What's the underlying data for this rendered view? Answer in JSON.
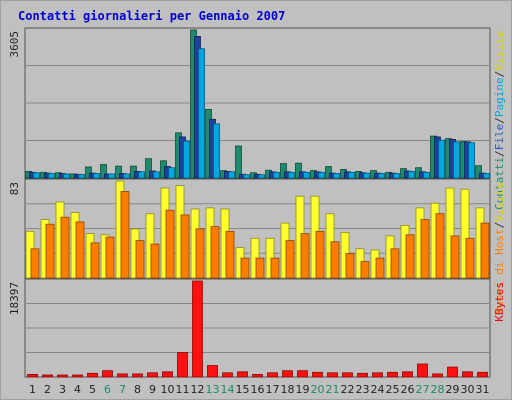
{
  "chart_data": [
    {
      "type": "bar",
      "title": "Contatti giornalieri per Gennaio 2007",
      "ylim": [
        0,
        3605
      ],
      "ytick_top": "3605",
      "categories": [
        "1",
        "2",
        "3",
        "4",
        "5",
        "6",
        "7",
        "8",
        "9",
        "10",
        "11",
        "12",
        "13",
        "14",
        "15",
        "16",
        "17",
        "18",
        "19",
        "20",
        "21",
        "22",
        "23",
        "24",
        "25",
        "26",
        "27",
        "28",
        "29",
        "30",
        "31"
      ],
      "weekend_days": [
        "6",
        "7",
        "13",
        "14",
        "20",
        "21",
        "27",
        "28"
      ],
      "grid": true,
      "legend_parts": [
        {
          "text": "Contatti",
          "color": "#1e8a6e"
        },
        {
          "text": "/",
          "color": "#333333"
        },
        {
          "text": "File",
          "color": "#2f56c8"
        },
        {
          "text": "/",
          "color": "#333333"
        },
        {
          "text": "Pagine",
          "color": "#00a6e0"
        },
        {
          "text": "/",
          "color": "#333333"
        },
        {
          "text": "Visite",
          "color": "#d8d800"
        }
      ],
      "series": [
        {
          "name": "Contatti",
          "color": "#1e8a6e",
          "values": [
            160,
            140,
            130,
            100,
            270,
            330,
            290,
            290,
            470,
            420,
            1100,
            3605,
            1670,
            180,
            780,
            130,
            190,
            350,
            360,
            180,
            280,
            210,
            160,
            180,
            140,
            230,
            250,
            1020,
            960,
            890,
            300
          ]
        },
        {
          "name": "File",
          "color": "#1c3fa0",
          "values": [
            140,
            120,
            110,
            90,
            120,
            100,
            110,
            160,
            170,
            280,
            1000,
            3450,
            1430,
            160,
            90,
            90,
            150,
            150,
            150,
            150,
            120,
            150,
            130,
            120,
            120,
            170,
            150,
            1000,
            940,
            880,
            120
          ]
        },
        {
          "name": "Pagine",
          "color": "#00a6e0",
          "values": [
            130,
            110,
            100,
            85,
            110,
            100,
            100,
            150,
            150,
            250,
            900,
            3150,
            1320,
            150,
            80,
            80,
            140,
            140,
            140,
            140,
            110,
            140,
            120,
            110,
            110,
            160,
            140,
            920,
            880,
            860,
            110
          ]
        }
      ]
    },
    {
      "type": "bar",
      "ylim": [
        0,
        83
      ],
      "ytick_top": "83",
      "legend_parts": [
        {
          "text": "Nuovi di Host",
          "color": "#ff7e00"
        },
        {
          "text": "/",
          "color": "#333333"
        },
        {
          "text": "Visite",
          "color": "#d8d800"
        }
      ],
      "series": [
        {
          "name": "Visite",
          "color": "#ffff30",
          "values": [
            40,
            50,
            65,
            56,
            38,
            37,
            83,
            42,
            55,
            77,
            79,
            59,
            60,
            59,
            26,
            34,
            34,
            47,
            70,
            70,
            55,
            39,
            25,
            24,
            36,
            45,
            60,
            64,
            77,
            76,
            60
          ]
        },
        {
          "name": "Nuovi di Host",
          "color": "#ff7e00",
          "values": [
            25,
            46,
            52,
            48,
            30,
            35,
            74,
            32,
            29,
            58,
            54,
            42,
            44,
            40,
            17,
            17,
            17,
            32,
            38,
            40,
            31,
            21,
            14,
            17,
            25,
            37,
            50,
            55,
            36,
            34,
            47
          ]
        }
      ]
    },
    {
      "type": "bar",
      "ylim": [
        0,
        18397
      ],
      "ytick_top": "18397",
      "legend_parts": [
        {
          "text": "KBytes",
          "color": "#e01010"
        }
      ],
      "series": [
        {
          "name": "KBytes",
          "color": "#ff1010",
          "values": [
            500,
            400,
            300,
            300,
            700,
            1200,
            600,
            600,
            800,
            1000,
            4700,
            18397,
            2200,
            800,
            1000,
            500,
            800,
            1200,
            1200,
            900,
            800,
            800,
            700,
            800,
            900,
            1000,
            2500,
            600,
            1900,
            1000,
            900
          ]
        }
      ]
    }
  ]
}
